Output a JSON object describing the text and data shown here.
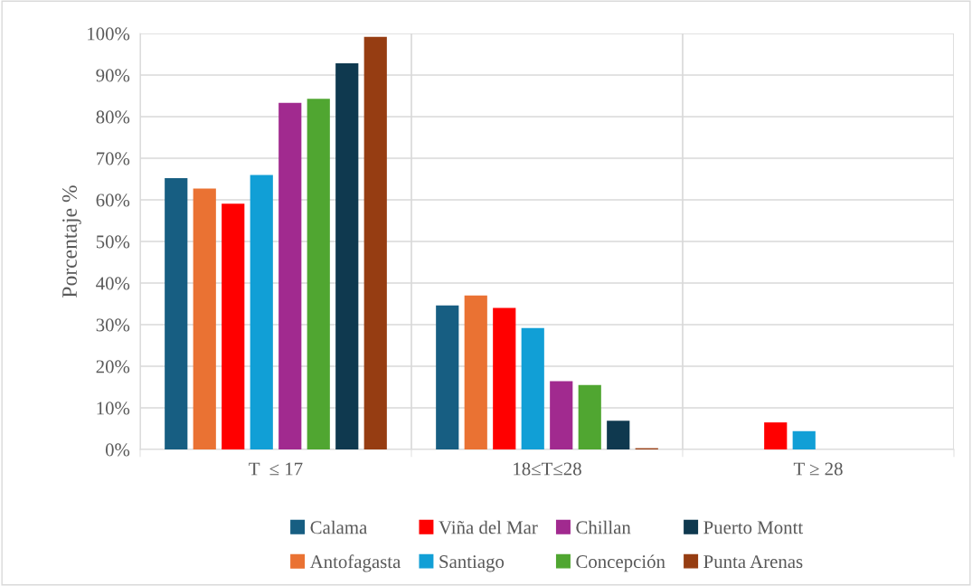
{
  "chart_data": {
    "type": "bar",
    "ylabel": "Porcentaje %",
    "categories": [
      "T  ≤ 17",
      "18≤T≤28",
      "T ≥ 28"
    ],
    "series": [
      {
        "name": "Calama",
        "color": "#175e82",
        "values": [
          65.2,
          34.6,
          0
        ]
      },
      {
        "name": "Antofagasta",
        "color": "#ea7233",
        "values": [
          62.7,
          37.0,
          0
        ]
      },
      {
        "name": "Viña del Mar",
        "color": "#ff0000",
        "values": [
          59.1,
          34.0,
          6.5
        ]
      },
      {
        "name": "Santiago",
        "color": "#119fd6",
        "values": [
          66.0,
          29.2,
          4.4
        ]
      },
      {
        "name": "Chillan",
        "color": "#a12a8f",
        "values": [
          83.3,
          16.4,
          0
        ]
      },
      {
        "name": "Concepción",
        "color": "#50a631",
        "values": [
          84.3,
          15.5,
          0
        ]
      },
      {
        "name": "Puerto Montt",
        "color": "#0f394f",
        "values": [
          92.8,
          6.9,
          0
        ]
      },
      {
        "name": "Punta Arenas",
        "color": "#963d12",
        "values": [
          99.2,
          0.3,
          0
        ]
      }
    ],
    "ylim": [
      0,
      100
    ],
    "yticks": [
      {
        "value": 0,
        "label": "0%"
      },
      {
        "value": 10,
        "label": "10%"
      },
      {
        "value": 20,
        "label": "20%"
      },
      {
        "value": 30,
        "label": "30%"
      },
      {
        "value": 40,
        "label": "40%"
      },
      {
        "value": 50,
        "label": "50%"
      },
      {
        "value": 60,
        "label": "60%"
      },
      {
        "value": 70,
        "label": "70%"
      },
      {
        "value": 80,
        "label": "80%"
      },
      {
        "value": 90,
        "label": "90%"
      },
      {
        "value": 100,
        "label": "100%"
      }
    ],
    "grid": true,
    "legend": "bottom"
  }
}
